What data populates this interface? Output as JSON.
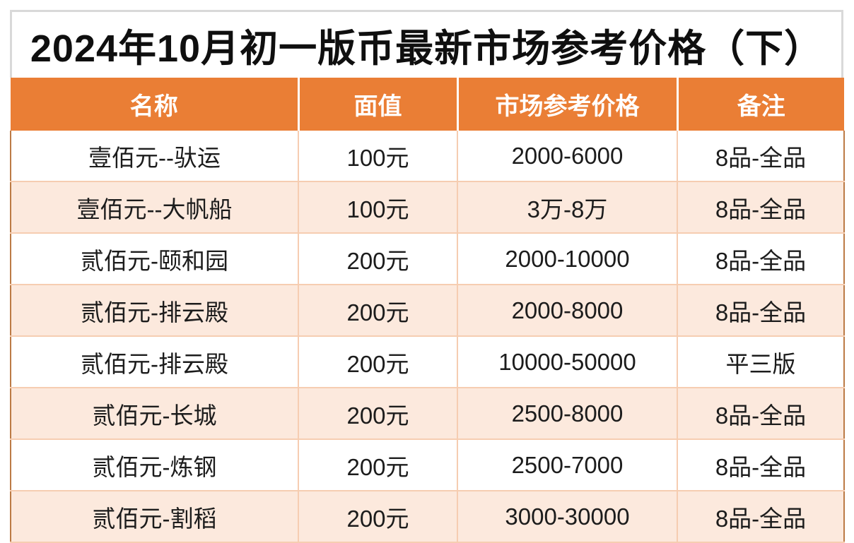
{
  "title": "2024年10月初一版币最新市场参考价格（下）",
  "table": {
    "columns": [
      {
        "key": "name",
        "label": "名称"
      },
      {
        "key": "denomination",
        "label": "面值"
      },
      {
        "key": "price",
        "label": "市场参考价格"
      },
      {
        "key": "remark",
        "label": "备注"
      }
    ],
    "rows": [
      [
        "壹佰元--驮运",
        "100元",
        "2000-6000",
        "8品-全品"
      ],
      [
        "壹佰元--大帆船",
        "100元",
        "3万-8万",
        "8品-全品"
      ],
      [
        "贰佰元-颐和园",
        "200元",
        "2000-10000",
        "8品-全品"
      ],
      [
        "贰佰元-排云殿",
        "200元",
        "2000-8000",
        "8品-全品"
      ],
      [
        "贰佰元-排云殿",
        "200元",
        "10000-50000",
        "平三版"
      ],
      [
        "贰佰元-长城",
        "200元",
        "2500-8000",
        "8品-全品"
      ],
      [
        "贰佰元-炼钢",
        "200元",
        "2500-7000",
        "8品-全品"
      ],
      [
        "贰佰元-割稻",
        "200元",
        "3000-30000",
        "8品-全品"
      ]
    ]
  },
  "colors": {
    "header_orange": "#ea7e35",
    "row_peach": "#fce9dd",
    "grid_line": "#f6cdb1",
    "outer_border": "#bc7a45",
    "title_border_gray": "#d9d9d9",
    "text_black": "#1c1c1c"
  }
}
